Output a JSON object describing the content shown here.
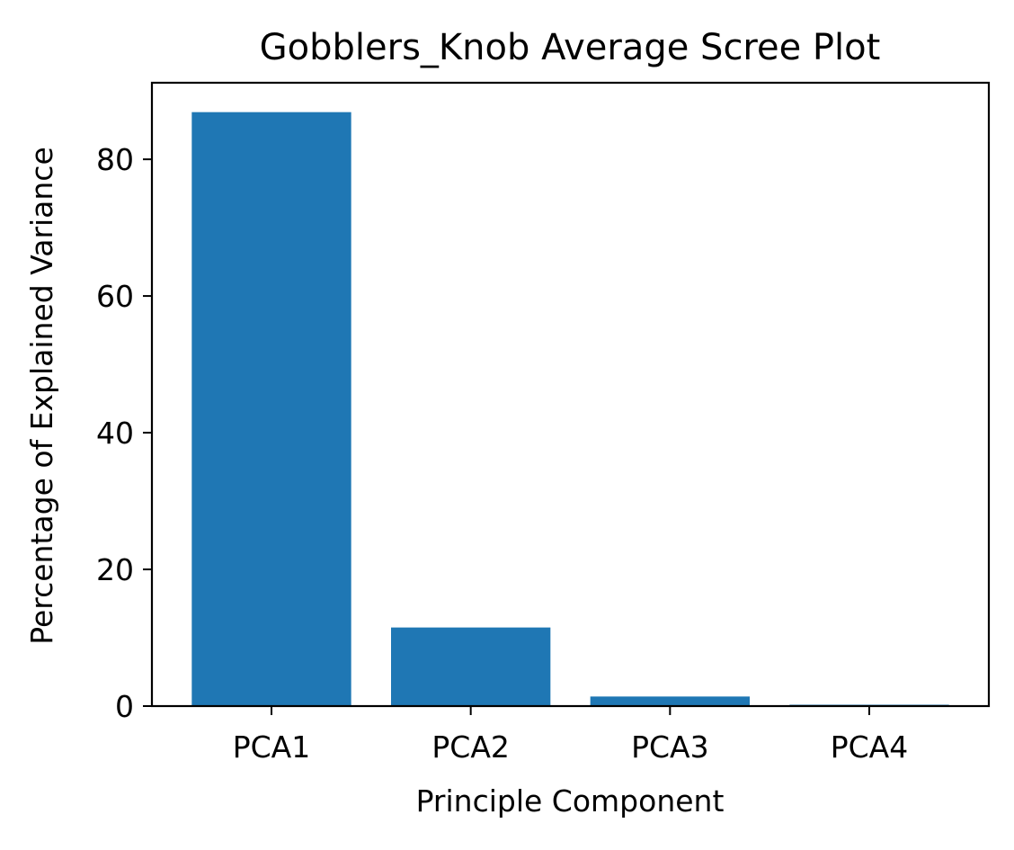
{
  "chart_data": {
    "type": "bar",
    "title": "Gobblers_Knob Average Scree Plot",
    "xlabel": "Principle Component",
    "ylabel": "Percentage of Explained Variance",
    "categories": [
      "PCA1",
      "PCA2",
      "PCA3",
      "PCA4"
    ],
    "values": [
      86.9,
      11.5,
      1.4,
      0.2
    ],
    "ylim": [
      0,
      91.2
    ],
    "yticks": [
      0,
      20,
      40,
      60,
      80
    ],
    "grid": false,
    "legend": "none",
    "bar_color": "#1f77b4"
  }
}
